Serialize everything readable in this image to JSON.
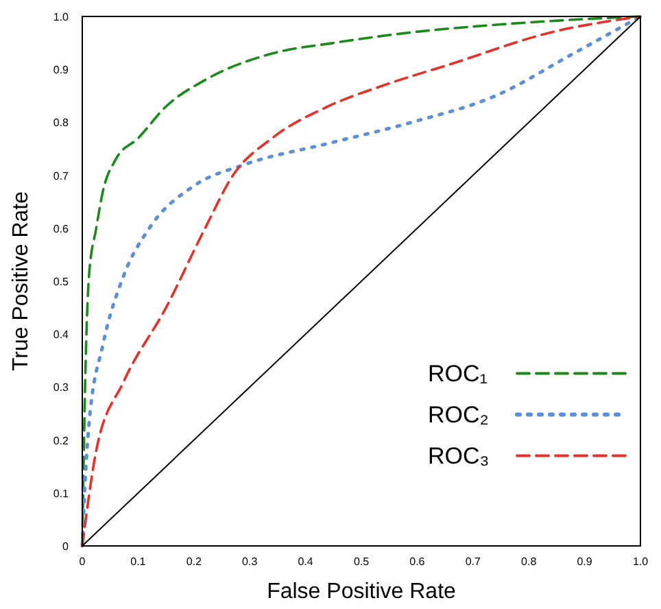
{
  "chart_data": {
    "type": "line",
    "xlabel": "False Positive Rate",
    "ylabel": "True Positive Rate",
    "xlim": [
      0,
      1
    ],
    "ylim": [
      0,
      1
    ],
    "xticks": [
      0,
      0.1,
      0.2,
      0.3,
      0.4,
      0.5,
      0.6,
      0.7,
      0.8,
      0.9,
      {
        "value": 1,
        "label": "1.0"
      }
    ],
    "yticks": [
      0,
      0.1,
      0.2,
      0.3,
      0.4,
      0.5,
      0.6,
      0.7,
      0.8,
      0.9,
      {
        "value": 1,
        "label": "1.0"
      }
    ],
    "grid": false,
    "legend": "bottom right",
    "series": [
      {
        "name": "ROC₁",
        "color": "#1a8a1a",
        "line_style": "dashed",
        "x": [
          0,
          0.005,
          0.012,
          0.025,
          0.037,
          0.06,
          0.1,
          0.15,
          0.22,
          0.34,
          0.45,
          0.59,
          0.75,
          0.9,
          1
        ],
        "values": [
          0,
          0.3,
          0.51,
          0.6,
          0.67,
          0.73,
          0.77,
          0.83,
          0.88,
          0.93,
          0.95,
          0.97,
          0.985,
          0.995,
          1
        ]
      },
      {
        "name": "ROC₂",
        "color": "#5b8fd6",
        "line_style": "dotted",
        "x": [
          0,
          0.005,
          0.012,
          0.037,
          0.074,
          0.12,
          0.2,
          0.29,
          0.44,
          0.59,
          0.74,
          0.88,
          1
        ],
        "values": [
          0,
          0.12,
          0.23,
          0.38,
          0.51,
          0.6,
          0.68,
          0.72,
          0.76,
          0.8,
          0.85,
          0.93,
          1
        ]
      },
      {
        "name": "ROC₃",
        "color": "#e8302a",
        "line_style": "dashed",
        "x": [
          0,
          0.025,
          0.074,
          0.15,
          0.22,
          0.27,
          0.34,
          0.44,
          0.54,
          0.66,
          0.84,
          1
        ],
        "values": [
          0,
          0.18,
          0.31,
          0.45,
          0.6,
          0.7,
          0.77,
          0.83,
          0.87,
          0.91,
          0.97,
          1
        ]
      },
      {
        "color": "#000000",
        "line_style": "solid",
        "x": [
          0,
          1
        ],
        "values": [
          0,
          1
        ]
      }
    ]
  }
}
